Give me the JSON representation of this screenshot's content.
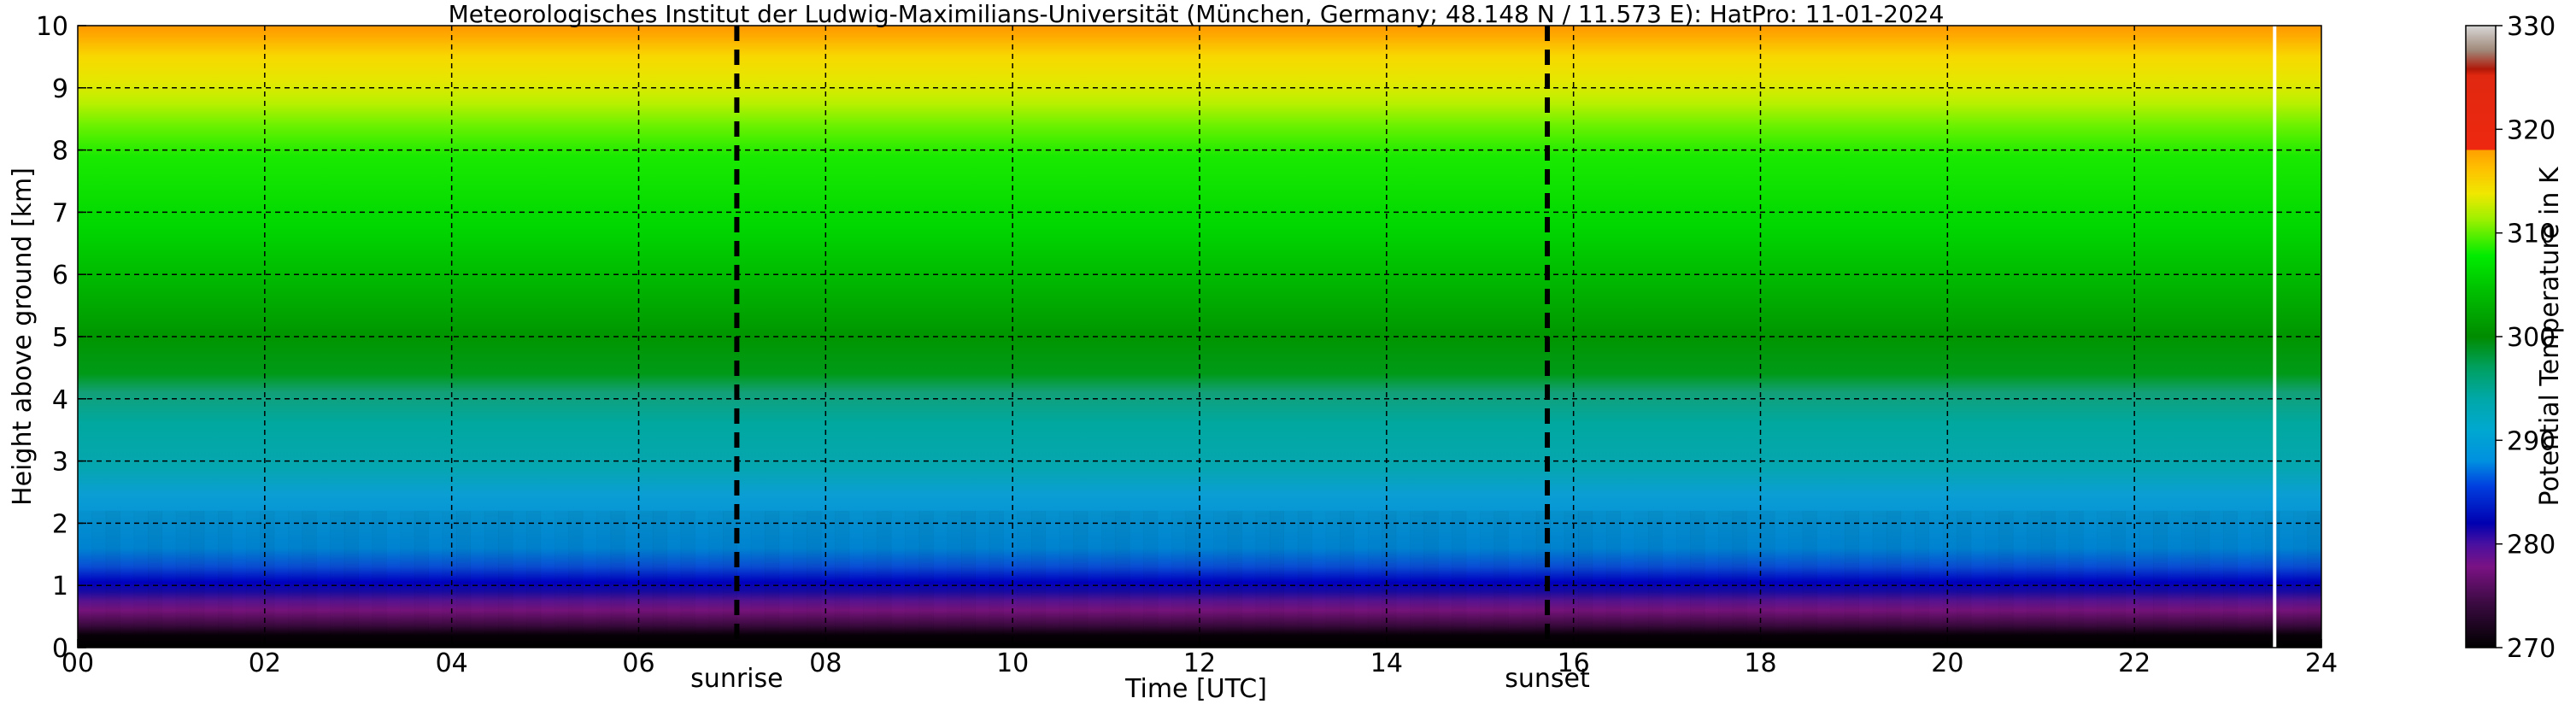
{
  "chart_data": {
    "type": "heatmap",
    "title": "Meteorologisches Institut der Ludwig-Maximilians-Universität (München, Germany; 48.148 N / 11.573 E):    HatPro: 11-01-2024",
    "xlabel": "Time [UTC]",
    "ylabel": "Height above ground [km]",
    "xlim": [
      0,
      24
    ],
    "ylim": [
      0,
      10
    ],
    "x_ticks": [
      "00",
      "02",
      "04",
      "06",
      "08",
      "10",
      "12",
      "14",
      "16",
      "18",
      "20",
      "22",
      "24"
    ],
    "y_ticks": [
      "0",
      "1",
      "2",
      "3",
      "4",
      "5",
      "6",
      "7",
      "8",
      "9",
      "10"
    ],
    "grid": true,
    "colorbar": {
      "label": "Potential Temperature in K",
      "ticks": [
        "270",
        "280",
        "290",
        "300",
        "310",
        "320",
        "330"
      ],
      "range": [
        270,
        330
      ]
    },
    "events": [
      {
        "label": "sunrise",
        "x": 7.05
      },
      {
        "label": "sunset",
        "x": 15.72
      }
    ],
    "data_end_x": 23.5,
    "profile": [
      {
        "height_km": 0.0,
        "theta_K": 270
      },
      {
        "height_km": 0.3,
        "theta_K": 273
      },
      {
        "height_km": 0.6,
        "theta_K": 276
      },
      {
        "height_km": 0.9,
        "theta_K": 280
      },
      {
        "height_km": 1.2,
        "theta_K": 283
      },
      {
        "height_km": 1.5,
        "theta_K": 285
      },
      {
        "height_km": 2.5,
        "theta_K": 288
      },
      {
        "height_km": 3.5,
        "theta_K": 293
      },
      {
        "height_km": 4.5,
        "theta_K": 300
      },
      {
        "height_km": 5.5,
        "theta_K": 302
      },
      {
        "height_km": 7.0,
        "theta_K": 305
      },
      {
        "height_km": 8.5,
        "theta_K": 308
      },
      {
        "height_km": 9.0,
        "theta_K": 311
      },
      {
        "height_km": 9.6,
        "theta_K": 314
      },
      {
        "height_km": 10.0,
        "theta_K": 317
      }
    ]
  }
}
